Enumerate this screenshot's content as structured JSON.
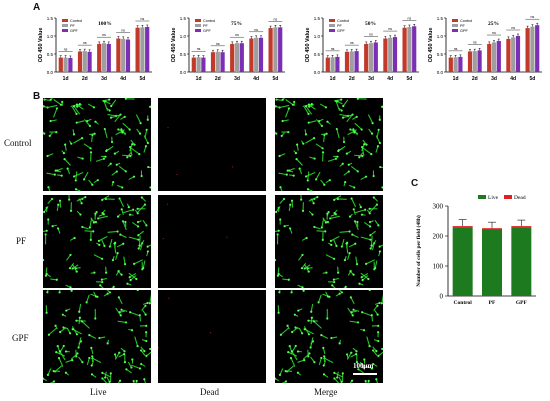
{
  "panels": {
    "a": "A",
    "b": "B",
    "c": "C"
  },
  "growth_charts_common": {
    "ylabel": "OD 450 Value",
    "x": [
      "1d",
      "2d",
      "3d",
      "4d",
      "5d"
    ],
    "yticks": [
      "0.0",
      "0.5",
      "1.0",
      "1.5"
    ],
    "legend": [
      "Control",
      "PF",
      "GPF"
    ],
    "colors": {
      "Control": "#c0392b",
      "PF": "#9e9e9e",
      "GPF": "#7b2fb5"
    },
    "annotation": "ns"
  },
  "chart_data": [
    {
      "type": "bar",
      "title": "100%",
      "xlabel": "",
      "ylabel": "OD 450 Value",
      "categories": [
        "1d",
        "2d",
        "3d",
        "4d",
        "5d"
      ],
      "ylim": [
        0,
        1.5
      ],
      "series": [
        {
          "name": "Control",
          "values": [
            0.4,
            0.57,
            0.78,
            0.93,
            1.23
          ]
        },
        {
          "name": "PF",
          "values": [
            0.4,
            0.58,
            0.8,
            0.92,
            1.24
          ]
        },
        {
          "name": "GPF",
          "values": [
            0.39,
            0.56,
            0.78,
            0.9,
            1.25
          ]
        }
      ]
    },
    {
      "type": "bar",
      "title": "75%",
      "xlabel": "",
      "ylabel": "OD 450 Value",
      "categories": [
        "1d",
        "2d",
        "3d",
        "4d",
        "5d"
      ],
      "ylim": [
        0,
        1.5
      ],
      "series": [
        {
          "name": "Control",
          "values": [
            0.4,
            0.55,
            0.78,
            0.93,
            1.22
          ]
        },
        {
          "name": "PF",
          "values": [
            0.41,
            0.56,
            0.8,
            0.95,
            1.24
          ]
        },
        {
          "name": "GPF",
          "values": [
            0.4,
            0.55,
            0.8,
            0.95,
            1.24
          ]
        }
      ]
    },
    {
      "type": "bar",
      "title": "50%",
      "xlabel": "",
      "ylabel": "OD 450 Value",
      "categories": [
        "1d",
        "2d",
        "3d",
        "4d",
        "5d"
      ],
      "ylim": [
        0,
        1.5
      ],
      "series": [
        {
          "name": "Control",
          "values": [
            0.4,
            0.56,
            0.78,
            0.93,
            1.23
          ]
        },
        {
          "name": "PF",
          "values": [
            0.41,
            0.57,
            0.8,
            0.95,
            1.25
          ]
        },
        {
          "name": "GPF",
          "values": [
            0.42,
            0.58,
            0.82,
            0.97,
            1.27
          ]
        }
      ]
    },
    {
      "type": "bar",
      "title": "25%",
      "xlabel": "",
      "ylabel": "OD 450 Value",
      "categories": [
        "1d",
        "2d",
        "3d",
        "4d",
        "5d"
      ],
      "ylim": [
        0,
        1.5
      ],
      "series": [
        {
          "name": "Control",
          "values": [
            0.4,
            0.57,
            0.78,
            0.92,
            1.22
          ]
        },
        {
          "name": "PF",
          "values": [
            0.41,
            0.58,
            0.82,
            0.96,
            1.26
          ]
        },
        {
          "name": "GPF",
          "values": [
            0.42,
            0.6,
            0.86,
            1.0,
            1.3
          ]
        }
      ]
    },
    {
      "type": "bar",
      "title": "",
      "xlabel": "",
      "ylabel": "Number of cells per field (48h)",
      "categories": [
        "Control",
        "PF",
        "GPF"
      ],
      "ylim": [
        0,
        300
      ],
      "yticks": [
        "0",
        "100",
        "200",
        "300"
      ],
      "legend_position": "top",
      "colors": {
        "Live": "#1e7a1e",
        "Dead": "#e02020"
      },
      "series": [
        {
          "name": "Live",
          "values": [
            228,
            220,
            228
          ],
          "error": [
            22,
            20,
            20
          ]
        },
        {
          "name": "Dead",
          "values": [
            5,
            6,
            5
          ]
        }
      ]
    }
  ],
  "microscopy": {
    "rows": [
      "Control",
      "PF",
      "GPF"
    ],
    "columns": [
      "Live",
      "Dead",
      "Merge"
    ],
    "scale_bar": "100μm"
  }
}
